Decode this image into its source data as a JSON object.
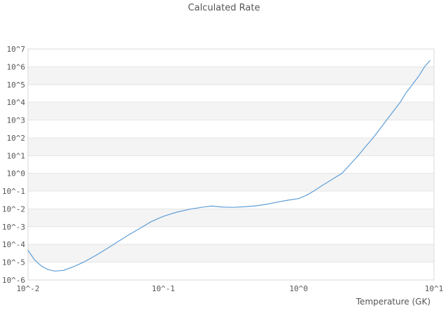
{
  "chart_data": {
    "type": "line",
    "title": "Calculated Rate",
    "xlabel": "Temperature (GK)",
    "ylabel": "",
    "x_scale": "log10",
    "y_scale": "log10",
    "x_log_range": [
      -2,
      1
    ],
    "y_log_range": [
      -6,
      7
    ],
    "grid": "horizontal-major-only",
    "legend": "none",
    "background_bands": "alternating gray bands per decade, gray between 10^6-10^5, 10^4-10^3, 10^2-10^1, 10^0-10^-1, 10^-2-10^-3, 10^-4-10^-5",
    "x_ticks": [
      {
        "log": -2,
        "label": "10^-2"
      },
      {
        "log": -1,
        "label": "10^-1"
      },
      {
        "log": 0,
        "label": "10^0"
      },
      {
        "log": 1,
        "label": "10^1"
      }
    ],
    "y_ticks": [
      {
        "log": 7,
        "label": "10^7"
      },
      {
        "log": 6,
        "label": "10^6"
      },
      {
        "log": 5,
        "label": "10^5"
      },
      {
        "log": 4,
        "label": "10^4"
      },
      {
        "log": 3,
        "label": "10^3"
      },
      {
        "log": 2,
        "label": "10^2"
      },
      {
        "log": 1,
        "label": "10^1"
      },
      {
        "log": 0,
        "label": "10^0"
      },
      {
        "log": -1,
        "label": "10^-1"
      },
      {
        "log": -2,
        "label": "10^-2"
      },
      {
        "log": -3,
        "label": "10^-3"
      },
      {
        "log": -4,
        "label": "10^-4"
      },
      {
        "log": -5,
        "label": "10^-5"
      },
      {
        "log": -6,
        "label": "10^-6"
      }
    ],
    "series": [
      {
        "name": "Calculated Rate",
        "color": "#5f9ed7",
        "points_log10": [
          [
            -2.0,
            -4.33
          ],
          [
            -1.95,
            -4.88
          ],
          [
            -1.9,
            -5.22
          ],
          [
            -1.85,
            -5.42
          ],
          [
            -1.8,
            -5.5
          ],
          [
            -1.74,
            -5.46
          ],
          [
            -1.67,
            -5.27
          ],
          [
            -1.59,
            -5.0
          ],
          [
            -1.5,
            -4.62
          ],
          [
            -1.42,
            -4.25
          ],
          [
            -1.34,
            -3.86
          ],
          [
            -1.26,
            -3.48
          ],
          [
            -1.17,
            -3.08
          ],
          [
            -1.09,
            -2.72
          ],
          [
            -1.0,
            -2.42
          ],
          [
            -0.9,
            -2.18
          ],
          [
            -0.8,
            -2.01
          ],
          [
            -0.7,
            -1.89
          ],
          [
            -0.64,
            -1.84
          ],
          [
            -0.56,
            -1.9
          ],
          [
            -0.48,
            -1.91
          ],
          [
            -0.4,
            -1.88
          ],
          [
            -0.32,
            -1.83
          ],
          [
            -0.24,
            -1.74
          ],
          [
            -0.16,
            -1.62
          ],
          [
            -0.08,
            -1.51
          ],
          [
            0.0,
            -1.42
          ],
          [
            0.06,
            -1.22
          ],
          [
            0.11,
            -1.0
          ],
          [
            0.17,
            -0.7
          ],
          [
            0.23,
            -0.42
          ],
          [
            0.28,
            -0.18
          ],
          [
            0.32,
            0.0
          ],
          [
            0.38,
            0.5
          ],
          [
            0.44,
            1.0
          ],
          [
            0.5,
            1.55
          ],
          [
            0.55,
            2.0
          ],
          [
            0.6,
            2.5
          ],
          [
            0.65,
            3.0
          ],
          [
            0.7,
            3.5
          ],
          [
            0.75,
            4.0
          ],
          [
            0.79,
            4.5
          ],
          [
            0.84,
            5.0
          ],
          [
            0.89,
            5.5
          ],
          [
            0.93,
            6.0
          ],
          [
            0.97,
            6.35
          ]
        ]
      }
    ],
    "colors": {
      "line": "#5f9ed7",
      "band": "#f4f4f4",
      "grid": "#e5e5e5",
      "border": "#d9d9d9",
      "text": "#555555"
    }
  }
}
